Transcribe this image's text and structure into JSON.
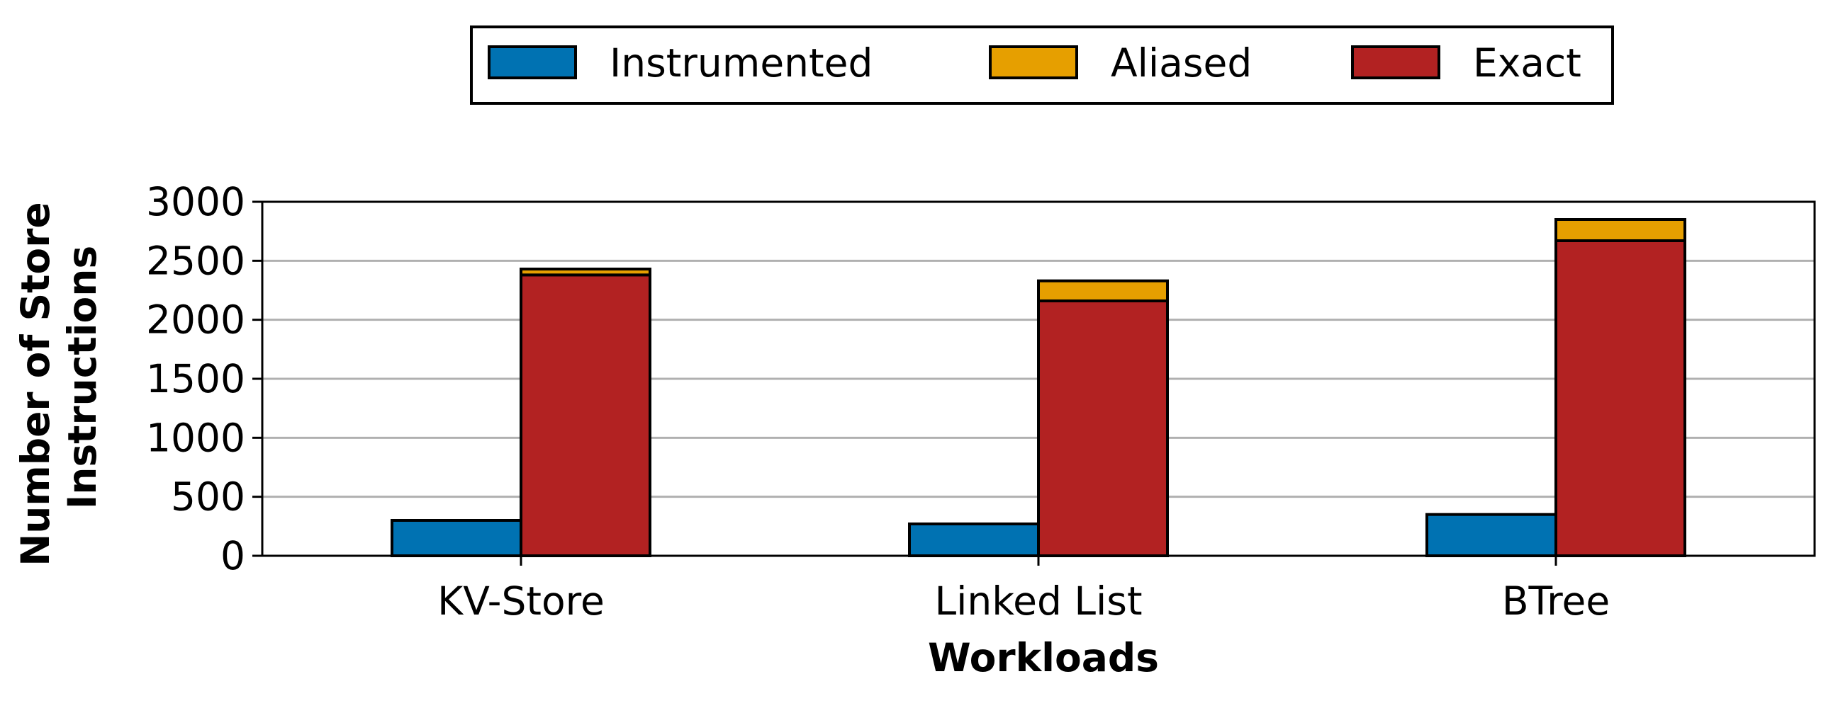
{
  "chart_data": {
    "type": "bar",
    "stacked_groups": true,
    "categories": [
      "KV-Store",
      "Linked List",
      "BTree"
    ],
    "series": [
      {
        "name": "Instrumented",
        "stack": "left",
        "color": "#0072b2",
        "values": [
          300,
          270,
          350
        ]
      },
      {
        "name": "Exact",
        "stack": "right",
        "color": "#b22222",
        "values": [
          2380,
          2160,
          2670
        ]
      },
      {
        "name": "Aliased",
        "stack": "right",
        "color": "#e69f00",
        "values": [
          50,
          170,
          180
        ]
      }
    ],
    "legend_order": [
      "Instrumented",
      "Aliased",
      "Exact"
    ],
    "legend_position": "top-center",
    "title": "",
    "xlabel": "Workloads",
    "ylabel_lines": [
      "Number of Store",
      "Instructions"
    ],
    "ylim": [
      0,
      3000
    ],
    "yticks": [
      0,
      500,
      1000,
      1500,
      2000,
      2500,
      3000
    ],
    "grid": "horizontal"
  }
}
